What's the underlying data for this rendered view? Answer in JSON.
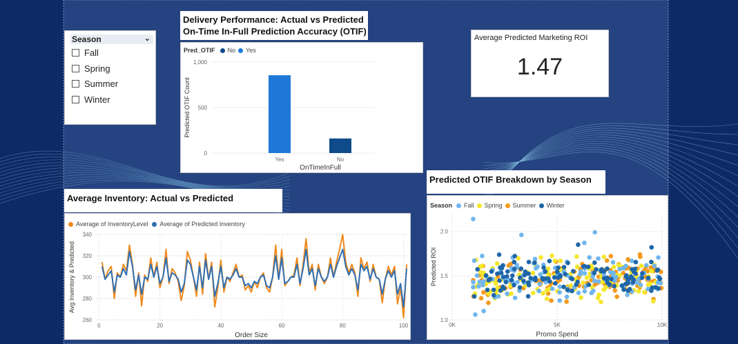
{
  "season_slicer": {
    "header": "Season",
    "items": [
      "Fall",
      "Spring",
      "Summer",
      "Winter"
    ]
  },
  "kpi": {
    "title": "Average Predicted Marketing ROI",
    "value": "1.47"
  },
  "colors": {
    "background": "#0e2a66",
    "otif_yes": "#1e78d8",
    "otif_no": "#0f4a8a",
    "inv_actual": "#f08a1c",
    "inv_pred": "#2f6fb4",
    "fall": "#6fb6ef",
    "spring": "#f5e72a",
    "summer": "#f39a1c",
    "winter": "#1f66a8"
  },
  "chart_data": [
    {
      "type": "bar",
      "title": "Delivery Performance: Actual vs Predicted On-Time In-Full Prediction Accuracy (OTIF)",
      "title_lines": [
        "Delivery Performance: Actual vs Predicted",
        "On-Time In-Full Prediction Accuracy (OTIF)"
      ],
      "legend_title": "Pred_OTIF",
      "legend": [
        "No",
        "Yes"
      ],
      "categories": [
        "Yes",
        "No"
      ],
      "values": [
        855,
        160
      ],
      "bar_series": [
        "Yes",
        "No"
      ],
      "xlabel": "OnTimeInFull",
      "ylabel": "Predicted OTIF Count",
      "ylim": [
        0,
        1000
      ],
      "yticks": [
        0,
        500,
        1000
      ],
      "ytick_labels": [
        "0",
        "500",
        "1,000"
      ]
    },
    {
      "type": "line",
      "title": "Average Inventory: Actual vs Predicted",
      "legend": [
        "Average of InventoryLevel",
        "Average of Predicted Inventory"
      ],
      "xlabel": "Order Size",
      "ylabel": "Avg Inventory & Predicted",
      "xlim": [
        -1,
        101
      ],
      "ylim": [
        260,
        340
      ],
      "xticks": [
        0,
        20,
        40,
        60,
        80,
        100
      ],
      "yticks": [
        260,
        280,
        300,
        320,
        340
      ],
      "x": [
        1,
        2,
        3,
        4,
        5,
        6,
        7,
        8,
        9,
        10,
        11,
        12,
        13,
        14,
        15,
        16,
        17,
        18,
        19,
        20,
        21,
        22,
        23,
        24,
        25,
        26,
        27,
        28,
        29,
        30,
        31,
        32,
        33,
        34,
        35,
        36,
        37,
        38,
        39,
        40,
        41,
        42,
        43,
        44,
        45,
        46,
        47,
        48,
        49,
        50,
        51,
        52,
        53,
        54,
        55,
        56,
        57,
        58,
        59,
        60,
        61,
        62,
        63,
        64,
        65,
        66,
        67,
        68,
        69,
        70,
        71,
        72,
        73,
        74,
        75,
        76,
        77,
        78,
        79,
        80,
        81,
        82,
        83,
        84,
        85,
        86,
        87,
        88,
        89,
        90,
        91,
        92,
        93,
        94,
        95,
        96,
        97,
        98,
        99,
        100,
        101
      ],
      "series": [
        {
          "name": "Average of InventoryLevel",
          "values": [
            314,
            298,
            306,
            310,
            280,
            304,
            300,
            312,
            306,
            330,
            312,
            282,
            304,
            273,
            302,
            296,
            318,
            300,
            314,
            290,
            300,
            326,
            294,
            308,
            304,
            296,
            278,
            292,
            324,
            316,
            300,
            282,
            314,
            284,
            322,
            298,
            314,
            272,
            290,
            316,
            286,
            300,
            296,
            304,
            312,
            300,
            302,
            288,
            292,
            286,
            296,
            290,
            300,
            304,
            290,
            286,
            300,
            330,
            298,
            326,
            292,
            296,
            300,
            302,
            318,
            292,
            312,
            336,
            304,
            312,
            288,
            312,
            300,
            294,
            300,
            318,
            300,
            314,
            326,
            340,
            314,
            304,
            312,
            304,
            282,
            318,
            308,
            314,
            296,
            312,
            300,
            298,
            276,
            298,
            310,
            302,
            310,
            275,
            290,
            262,
            312
          ]
        },
        {
          "name": "Average of Predicted Inventory",
          "values": [
            310,
            298,
            302,
            306,
            286,
            302,
            300,
            308,
            302,
            324,
            310,
            288,
            302,
            284,
            300,
            298,
            312,
            300,
            310,
            294,
            300,
            318,
            296,
            304,
            302,
            298,
            286,
            294,
            316,
            312,
            300,
            288,
            310,
            290,
            316,
            298,
            310,
            282,
            294,
            310,
            290,
            300,
            298,
            302,
            308,
            300,
            300,
            292,
            294,
            290,
            296,
            294,
            300,
            302,
            292,
            290,
            300,
            320,
            298,
            318,
            294,
            296,
            300,
            300,
            312,
            294,
            308,
            326,
            302,
            308,
            292,
            308,
            300,
            296,
            300,
            312,
            300,
            310,
            318,
            326,
            310,
            302,
            308,
            302,
            288,
            312,
            306,
            310,
            298,
            308,
            300,
            298,
            284,
            298,
            306,
            300,
            306,
            284,
            294,
            272,
            308
          ]
        }
      ]
    },
    {
      "type": "scatter",
      "title": "Predicted OTIF Breakdown by Season",
      "legend_title": "Season",
      "legend": [
        "Fall",
        "Spring",
        "Summer",
        "Winter"
      ],
      "xlabel": "Promo Spend",
      "ylabel": "Predicted ROI",
      "xlim": [
        0,
        10000
      ],
      "ylim": [
        1.0,
        2.2
      ],
      "xticks": [
        0,
        5000,
        10000
      ],
      "xtick_labels": [
        "0K",
        "5K",
        "10K"
      ],
      "yticks": [
        1.0,
        1.5,
        2.0
      ],
      "ytick_labels": [
        "1.0",
        "1.5",
        "2.0"
      ],
      "outliers": [
        {
          "season": "Fall",
          "x": 1000,
          "y": 2.14
        },
        {
          "season": "Fall",
          "x": 3300,
          "y": 1.96
        },
        {
          "season": "Fall",
          "x": 6800,
          "y": 1.99
        },
        {
          "season": "Fall",
          "x": 6300,
          "y": 1.87
        },
        {
          "season": "Winter",
          "x": 9500,
          "y": 1.82
        },
        {
          "season": "Winter",
          "x": 6000,
          "y": 1.85
        },
        {
          "season": "Fall",
          "x": 1100,
          "y": 1.06
        },
        {
          "season": "Fall",
          "x": 1500,
          "y": 1.1
        }
      ],
      "point_count_per_season": 120,
      "bulk_y_range": [
        1.15,
        1.78
      ],
      "bulk_x_range": [
        1000,
        10000
      ]
    }
  ]
}
